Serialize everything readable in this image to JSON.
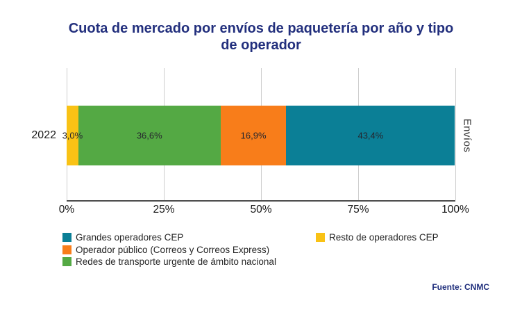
{
  "title_lines": [
    "Cuota de mercado por envíos de paquetería por año y tipo",
    "de operador"
  ],
  "title": "Cuota de mercado por envíos de paquetería por año y tipo de operador",
  "facet_label": "Envíos",
  "source": "Fuente: CNMC",
  "colors": {
    "title": "#222F7D",
    "source": "#1F2E7C",
    "teal": "#0B7F96",
    "orange": "#F87D1A",
    "green": "#54A944",
    "yellow": "#F9C215",
    "gridline": "#CDCDCD",
    "axis_line": "#4D4D4D"
  },
  "chart_data": {
    "type": "bar",
    "orientation": "horizontal",
    "stacked": true,
    "categories": [
      "2022"
    ],
    "series": [
      {
        "name": "Resto de operadores CEP",
        "color": "#F9C215",
        "values": [
          3.0
        ],
        "label": "3,0%"
      },
      {
        "name": "Redes de transporte urgente de ámbito nacional",
        "color": "#54A944",
        "values": [
          36.6
        ],
        "label": "36,6%"
      },
      {
        "name": "Operador público (Correos y Correos Express)",
        "color": "#F87D1A",
        "values": [
          16.9
        ],
        "label": "16,9%"
      },
      {
        "name": "Grandes operadores CEP",
        "color": "#0B7F96",
        "values": [
          43.4
        ],
        "label": "43,4%"
      }
    ],
    "x_ticks": [
      "0%",
      "25%",
      "50%",
      "75%",
      "100%"
    ],
    "xlim": [
      0,
      100
    ],
    "ylabel": "",
    "xlabel": "",
    "grid": "vertical",
    "legend_position": "bottom"
  },
  "legend": {
    "column1": [
      {
        "label": "Grandes operadores CEP",
        "color": "#0B7F96"
      },
      {
        "label": "Operador público (Correos y Correos Express)",
        "color": "#F87D1A"
      },
      {
        "label": "Redes de transporte urgente de ámbito nacional",
        "color": "#54A944"
      }
    ],
    "column2": [
      {
        "label": "Resto de operadores CEP",
        "color": "#F9C215"
      }
    ]
  }
}
